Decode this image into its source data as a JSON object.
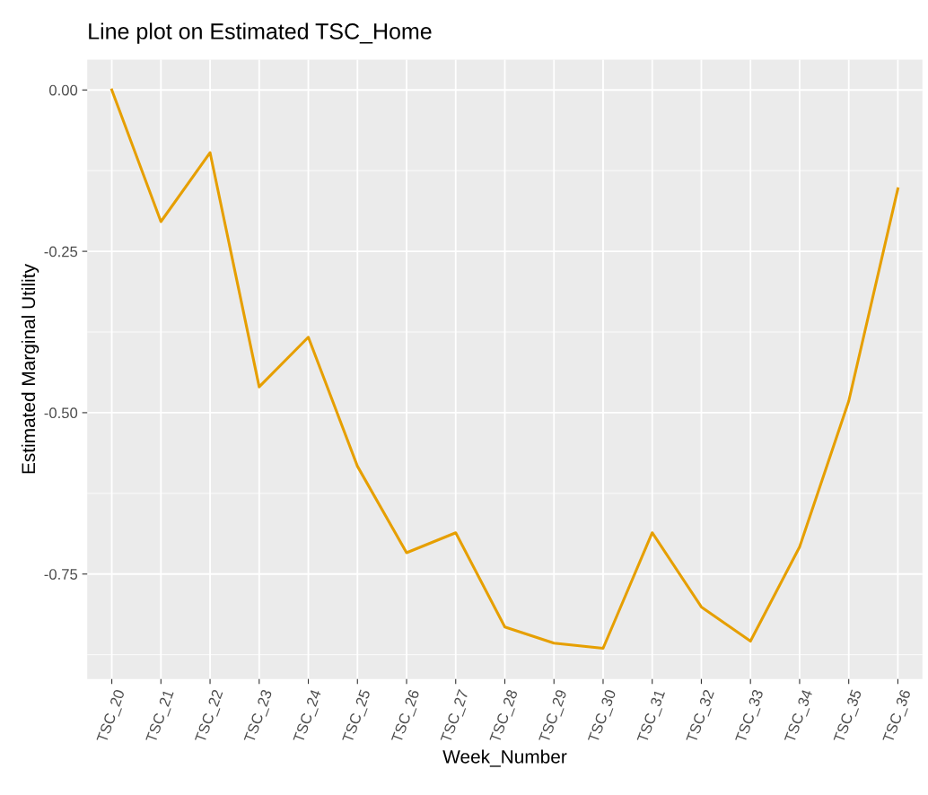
{
  "chart_data": {
    "type": "line",
    "title": "Line plot on Estimated TSC_Home",
    "xlabel": "Week_Number",
    "ylabel": "Estimated Marginal Utility",
    "categories": [
      "TSC_20",
      "TSC_21",
      "TSC_22",
      "TSC_23",
      "TSC_24",
      "TSC_25",
      "TSC_26",
      "TSC_27",
      "TSC_28",
      "TSC_29",
      "TSC_30",
      "TSC_31",
      "TSC_32",
      "TSC_33",
      "TSC_34",
      "TSC_35",
      "TSC_36"
    ],
    "series": [
      {
        "color": "#e69f00",
        "values": [
          0.0,
          -0.204,
          -0.097,
          -0.46,
          -0.383,
          -0.583,
          -0.717,
          -0.686,
          -0.832,
          -0.857,
          -0.865,
          -0.686,
          -0.801,
          -0.854,
          -0.708,
          -0.482,
          -0.153
        ]
      }
    ],
    "ylim": [
      -0.9125,
      0.047
    ],
    "yticks": [
      {
        "value": 0,
        "label": "0.00"
      },
      {
        "value": -0.25,
        "label": "-0.25"
      },
      {
        "value": -0.5,
        "label": "-0.50"
      },
      {
        "value": -0.75,
        "label": "-0.75"
      }
    ],
    "grid": true,
    "line_style": "solid"
  }
}
